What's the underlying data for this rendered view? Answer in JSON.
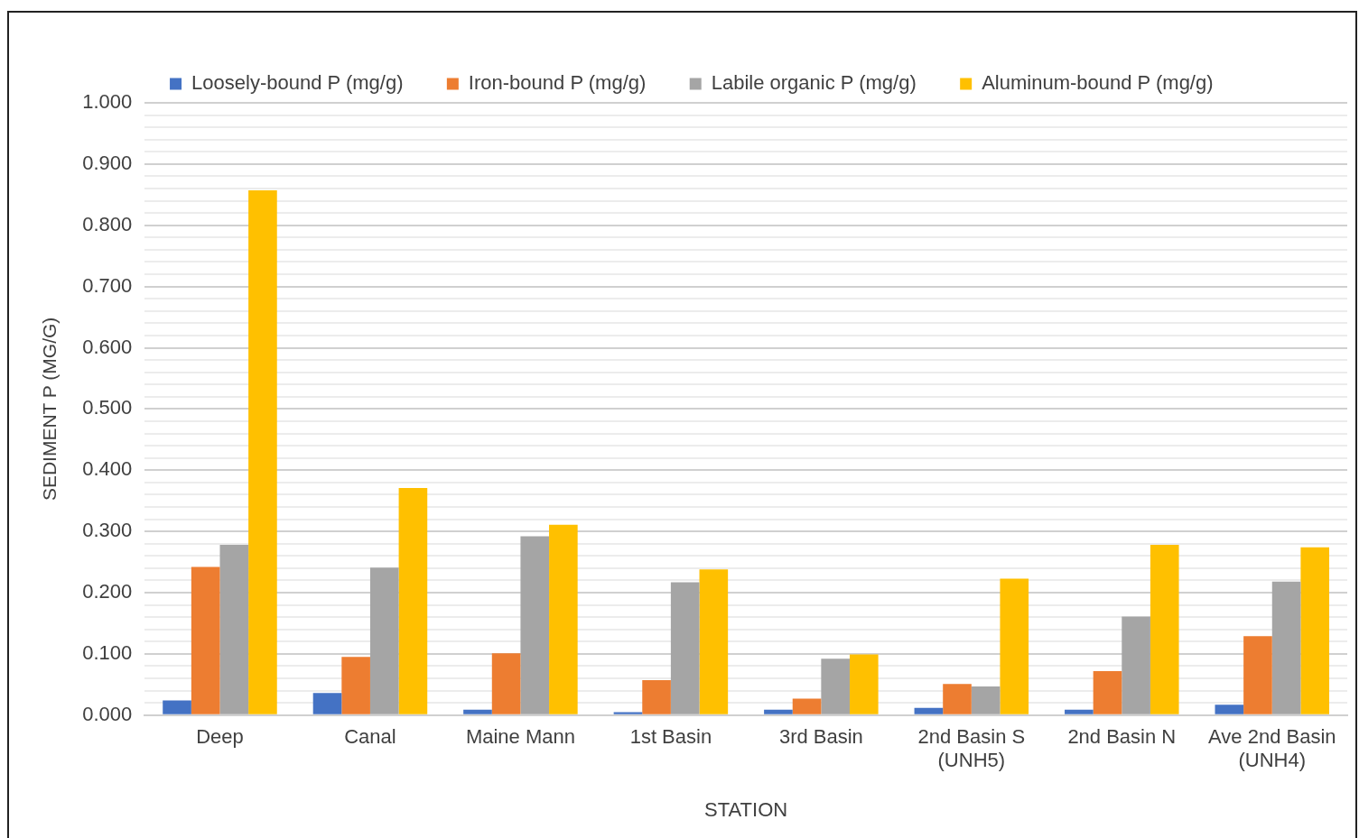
{
  "chart_data": {
    "type": "bar",
    "xlabel": "STATION",
    "ylabel": "SEDIMENT P (MG/G)",
    "categories": [
      "Deep",
      "Canal",
      "Maine Mann",
      "1st Basin",
      "3rd Basin",
      "2nd Basin S (UNH5)",
      "2nd Basin N",
      "Ave 2nd Basin (UNH4)"
    ],
    "series": [
      {
        "name": "Loosely-bound P (mg/g)",
        "color": "#4472c4",
        "values": [
          0.024,
          0.036,
          0.009,
          0.005,
          0.009,
          0.012,
          0.009,
          0.017
        ]
      },
      {
        "name": "Iron-bound P (mg/g)",
        "color": "#ed7d31",
        "values": [
          0.242,
          0.095,
          0.101,
          0.057,
          0.027,
          0.051,
          0.072,
          0.129
        ]
      },
      {
        "name": "Labile organic P (mg/g)",
        "color": "#a5a5a5",
        "values": [
          0.278,
          0.241,
          0.292,
          0.217,
          0.092,
          0.047,
          0.161,
          0.218
        ]
      },
      {
        "name": "Aluminum-bound P (mg/g)",
        "color": "#ffc000",
        "values": [
          0.857,
          0.371,
          0.311,
          0.238,
          0.099,
          0.223,
          0.278,
          0.274
        ]
      }
    ],
    "ylim": [
      0,
      1
    ],
    "yticks": [
      {
        "value": 0,
        "label": "0.000"
      },
      {
        "value": 0.02,
        "label": null
      },
      {
        "value": 0.04,
        "label": null
      },
      {
        "value": 0.06,
        "label": null
      },
      {
        "value": 0.08,
        "label": null
      },
      {
        "value": 0.1,
        "label": "0.100"
      },
      {
        "value": 0.12,
        "label": null
      },
      {
        "value": 0.14,
        "label": null
      },
      {
        "value": 0.16,
        "label": null
      },
      {
        "value": 0.18,
        "label": null
      },
      {
        "value": 0.2,
        "label": "0.200"
      },
      {
        "value": 0.22,
        "label": null
      },
      {
        "value": 0.24,
        "label": null
      },
      {
        "value": 0.26,
        "label": null
      },
      {
        "value": 0.28,
        "label": null
      },
      {
        "value": 0.3,
        "label": "0.300"
      },
      {
        "value": 0.32,
        "label": null
      },
      {
        "value": 0.34,
        "label": null
      },
      {
        "value": 0.36,
        "label": null
      },
      {
        "value": 0.38,
        "label": null
      },
      {
        "value": 0.4,
        "label": "0.400"
      },
      {
        "value": 0.42,
        "label": null
      },
      {
        "value": 0.44,
        "label": null
      },
      {
        "value": 0.46,
        "label": null
      },
      {
        "value": 0.48,
        "label": null
      },
      {
        "value": 0.5,
        "label": "0.500"
      },
      {
        "value": 0.52,
        "label": null
      },
      {
        "value": 0.54,
        "label": null
      },
      {
        "value": 0.56,
        "label": null
      },
      {
        "value": 0.58,
        "label": null
      },
      {
        "value": 0.6,
        "label": "0.600"
      },
      {
        "value": 0.62,
        "label": null
      },
      {
        "value": 0.64,
        "label": null
      },
      {
        "value": 0.66,
        "label": null
      },
      {
        "value": 0.68,
        "label": null
      },
      {
        "value": 0.7,
        "label": "0.700"
      },
      {
        "value": 0.72,
        "label": null
      },
      {
        "value": 0.74,
        "label": null
      },
      {
        "value": 0.76,
        "label": null
      },
      {
        "value": 0.78,
        "label": null
      },
      {
        "value": 0.8,
        "label": "0.800"
      },
      {
        "value": 0.82,
        "label": null
      },
      {
        "value": 0.84,
        "label": null
      },
      {
        "value": 0.86,
        "label": null
      },
      {
        "value": 0.88,
        "label": null
      },
      {
        "value": 0.9,
        "label": "0.900"
      },
      {
        "value": 0.92,
        "label": null
      },
      {
        "value": 0.94,
        "label": null
      },
      {
        "value": 0.96,
        "label": null
      },
      {
        "value": 0.98,
        "label": null
      },
      {
        "value": 1,
        "label": "1.000"
      }
    ],
    "grid": "y",
    "legend": "top"
  }
}
